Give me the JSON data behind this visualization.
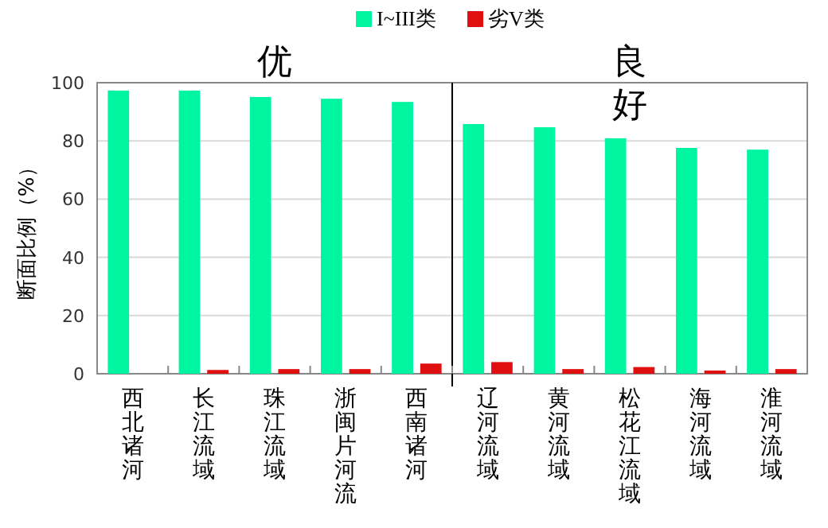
{
  "chart_data": {
    "type": "bar",
    "ylabel": "断面比例（%）",
    "categories": [
      "西北诸河",
      "长江流域",
      "珠江流域",
      "浙闽片河流",
      "西南诸河",
      "辽河流域",
      "黄河流域",
      "松花江流域",
      "海河流域",
      "淮河流域"
    ],
    "series": [
      {
        "name": "I~III类",
        "color": "#00f5a0",
        "values": [
          97.3,
          97.3,
          95.1,
          94.5,
          93.4,
          85.8,
          84.7,
          80.9,
          77.6,
          77.0
        ]
      },
      {
        "name": "劣V类",
        "color": "#e01010",
        "values": [
          0,
          1.3,
          1.6,
          1.6,
          3.5,
          4.0,
          1.6,
          2.3,
          1.1,
          1.6
        ]
      }
    ],
    "ylim": [
      0,
      100
    ],
    "yticks": [
      0,
      20,
      40,
      60,
      80,
      100
    ],
    "grid": "y",
    "legend": "top",
    "ref_lines": [
      {
        "axis": "x",
        "value": "西南诸河",
        "color": "#000000"
      }
    ],
    "annotations": [
      "优",
      "良好"
    ]
  }
}
